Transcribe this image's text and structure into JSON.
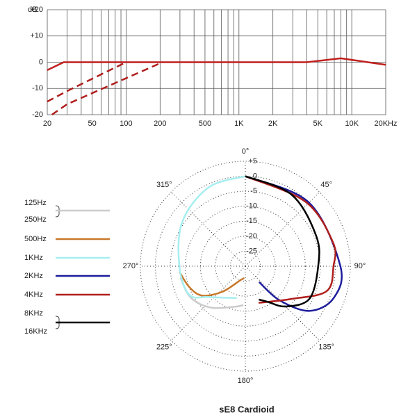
{
  "chart_data": [
    {
      "type": "line",
      "ylabel": "dB",
      "xscale": "log",
      "grid": true,
      "xlim": [
        20,
        20000
      ],
      "xticks": [
        20,
        50,
        100,
        200,
        500,
        {
          "value": 1000,
          "label": "1K"
        },
        {
          "value": 2000,
          "label": "2K"
        },
        {
          "value": 5000,
          "label": "5K"
        },
        {
          "value": 10000,
          "label": "10K"
        },
        {
          "value": 20000,
          "label": "20KHz"
        }
      ],
      "xminor": [
        30,
        40,
        60,
        70,
        80,
        90,
        300,
        400,
        600,
        700,
        800,
        900,
        3000,
        4000,
        6000,
        7000,
        8000,
        9000
      ],
      "ylim": [
        -20,
        20
      ],
      "yticks": [
        -20,
        -10,
        0,
        {
          "value": 10,
          "label": "+10"
        },
        {
          "value": 20,
          "label": "+20"
        }
      ],
      "series": [
        {
          "color": "#c0201e",
          "dash": "solid",
          "x": [
            20,
            28,
            4000,
            8000,
            20000
          ],
          "values": [
            -3,
            0,
            0,
            1.5,
            -1
          ]
        },
        {
          "color": "#b01e1c",
          "dash": "dashed",
          "x": [
            20,
            30,
            100
          ],
          "values": [
            -15,
            -11,
            0
          ]
        },
        {
          "color": "#b01e1c",
          "dash": "dashed",
          "x": [
            22,
            30,
            210
          ],
          "values": [
            -20,
            -16,
            0
          ]
        }
      ]
    },
    {
      "type": "polar",
      "title": "sE8  Cardioid",
      "rlim": [
        -30,
        5
      ],
      "rticks": [
        {
          "value": 5,
          "label": "+5"
        },
        0,
        -5,
        -10,
        -15,
        -20,
        -25
      ],
      "thetaticks": [
        {
          "value": 0,
          "label": "0°"
        },
        {
          "value": 45,
          "label": "45°"
        },
        {
          "value": 90,
          "label": "90°"
        },
        {
          "value": 135,
          "label": "135°"
        },
        {
          "value": 180,
          "label": "180°"
        },
        {
          "value": 225,
          "label": "225°"
        },
        {
          "value": 270,
          "label": "270°"
        },
        {
          "value": 315,
          "label": "315°"
        }
      ],
      "series": [
        {
          "labels": [
            "125Hz",
            "250Hz"
          ],
          "color": "#cccccc",
          "theta": [
            260,
            240,
            220,
            195,
            183
          ],
          "r": [
            -8,
            -9,
            -12,
            -16,
            -17
          ]
        },
        {
          "labels": [
            "500Hz"
          ],
          "color": "#c8782a",
          "theta": [
            265,
            250,
            236,
            222,
            200,
            185
          ],
          "r": [
            -8,
            -10,
            -12.5,
            -18.5,
            -25,
            -26
          ]
        },
        {
          "labels": [
            "1KHz"
          ],
          "color": "#a6eef0",
          "theta": [
            360,
            335,
            305,
            270,
            243,
            230,
            195
          ],
          "r": [
            0,
            -1,
            -4.3,
            -8,
            -9,
            -14,
            -19
          ]
        },
        {
          "labels": [
            "2KHz"
          ],
          "color": "#1c1c9c",
          "theta": [
            0,
            45,
            90,
            110,
            125,
            135,
            139
          ],
          "r": [
            0,
            0,
            1.7,
            1.3,
            -4,
            -14,
            -23
          ]
        },
        {
          "labels": [
            "4KHz"
          ],
          "color": "#b01e1c",
          "theta": [
            0,
            43,
            75,
            90,
            107,
            125,
            160
          ],
          "r": [
            0,
            -0.6,
            0.3,
            -0.6,
            -1.6,
            -11,
            -17
          ]
        },
        {
          "labels": [
            "8KHz",
            "16KHz"
          ],
          "color": "#000000",
          "theta": [
            0,
            33,
            67,
            90,
            117,
            135,
            148,
            158
          ],
          "r": [
            0,
            -1.6,
            -4.3,
            -5.7,
            -6,
            -11,
            -16,
            -18
          ]
        }
      ]
    }
  ]
}
